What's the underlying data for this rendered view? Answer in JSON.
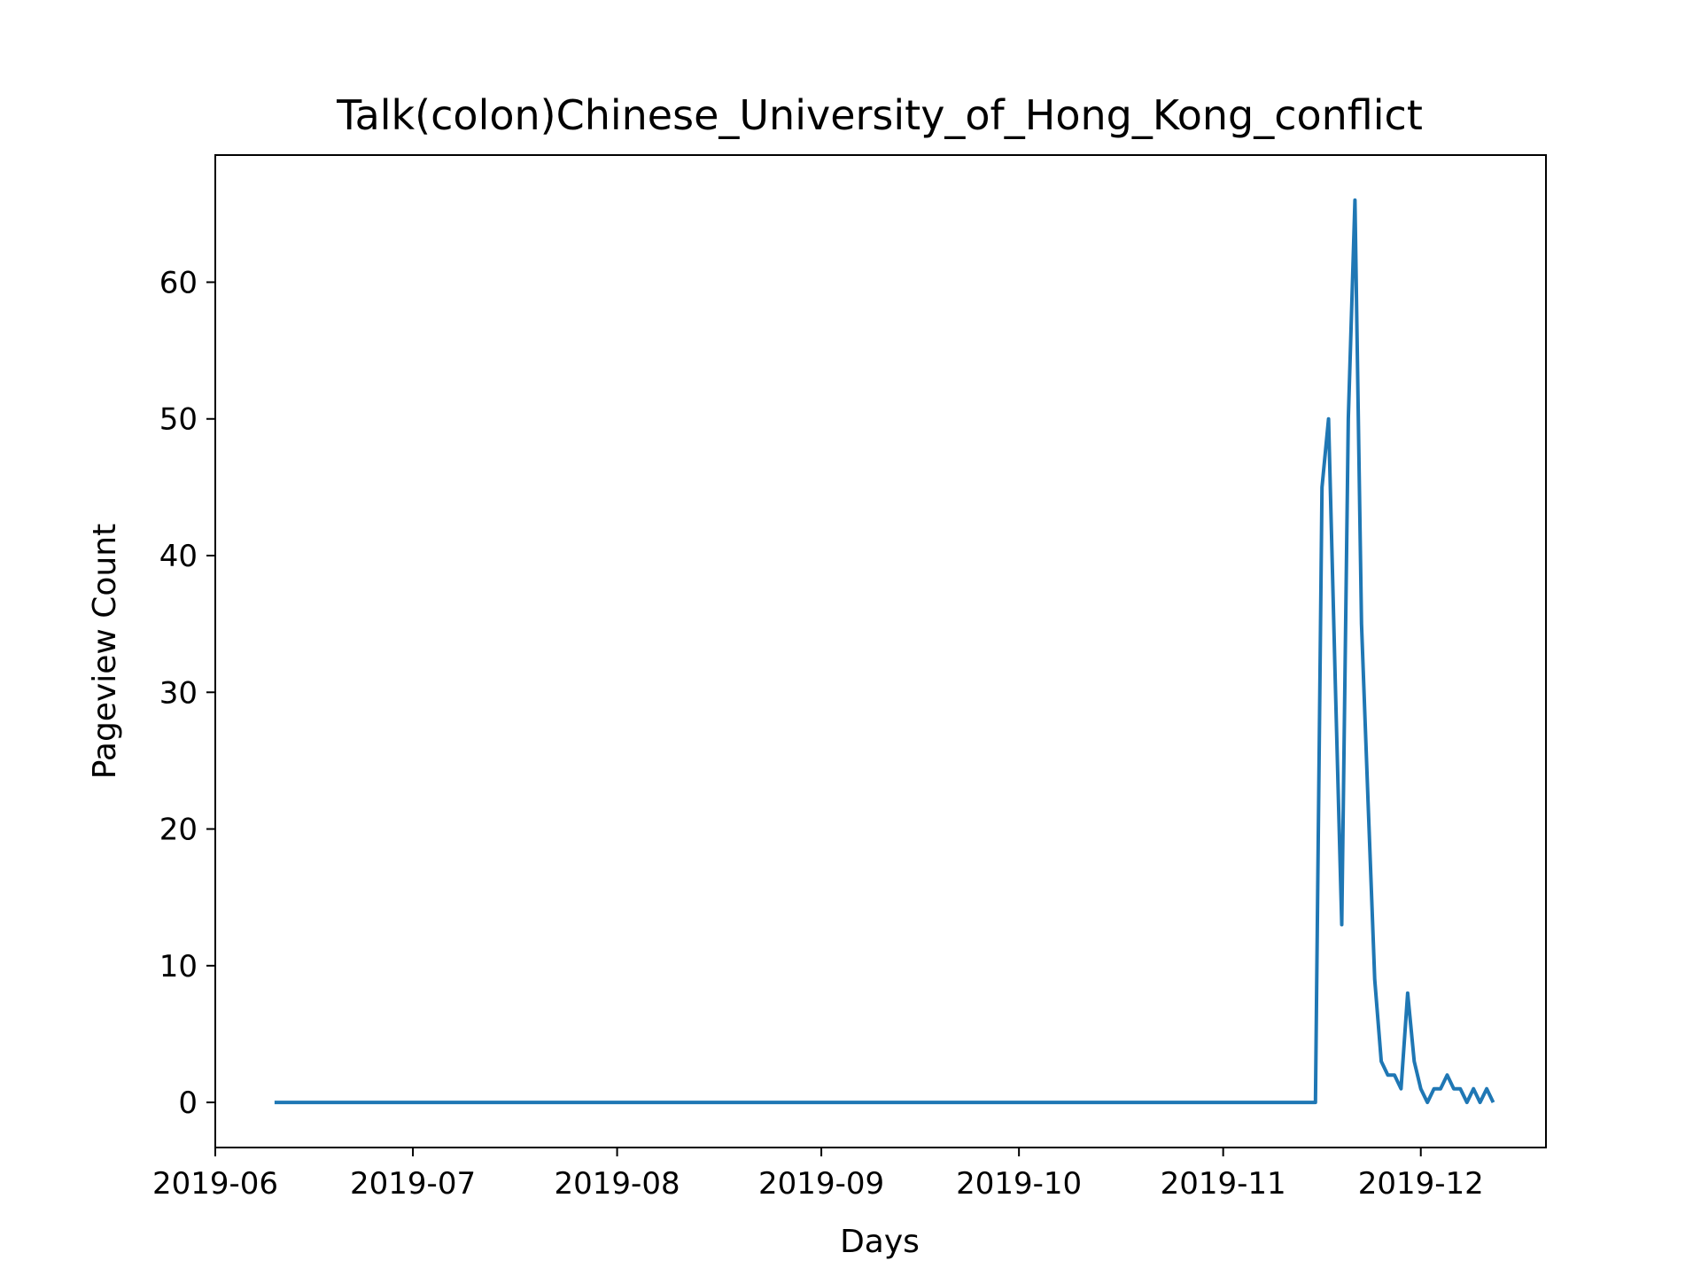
{
  "chart_data": {
    "type": "line",
    "title": "Talk(colon)Chinese_University_of_Hong_Kong_conflict",
    "xlabel": "Days",
    "ylabel": "Pageview Count",
    "x_ticks": [
      "2019-06",
      "2019-07",
      "2019-08",
      "2019-09",
      "2019-10",
      "2019-11",
      "2019-12"
    ],
    "x_tick_dates": [
      "2019-06-01",
      "2019-07-01",
      "2019-08-01",
      "2019-09-01",
      "2019-10-01",
      "2019-11-01",
      "2019-12-01"
    ],
    "y_ticks": [
      0,
      10,
      20,
      30,
      40,
      50,
      60
    ],
    "xlim": [
      "2019-06-01",
      "2019-12-20"
    ],
    "ylim": [
      -3.3,
      69.3
    ],
    "grid": false,
    "series": [
      {
        "color": "#1f77b4",
        "points": [
          [
            "2019-06-10",
            0
          ],
          [
            "2019-11-15",
            0
          ],
          [
            "2019-11-16",
            45
          ],
          [
            "2019-11-17",
            50
          ],
          [
            "2019-11-18",
            31
          ],
          [
            "2019-11-19",
            13
          ],
          [
            "2019-11-20",
            50
          ],
          [
            "2019-11-21",
            66
          ],
          [
            "2019-11-22",
            35
          ],
          [
            "2019-11-23",
            22
          ],
          [
            "2019-11-24",
            9
          ],
          [
            "2019-11-25",
            3
          ],
          [
            "2019-11-26",
            2
          ],
          [
            "2019-11-27",
            2
          ],
          [
            "2019-11-28",
            1
          ],
          [
            "2019-11-29",
            8
          ],
          [
            "2019-11-30",
            3
          ],
          [
            "2019-12-01",
            1
          ],
          [
            "2019-12-02",
            0
          ],
          [
            "2019-12-03",
            1
          ],
          [
            "2019-12-04",
            1
          ],
          [
            "2019-12-05",
            2
          ],
          [
            "2019-12-06",
            1
          ],
          [
            "2019-12-07",
            1
          ],
          [
            "2019-12-08",
            0
          ],
          [
            "2019-12-09",
            1
          ],
          [
            "2019-12-10",
            0
          ],
          [
            "2019-12-11",
            1
          ],
          [
            "2019-12-12",
            0
          ]
        ]
      }
    ]
  }
}
